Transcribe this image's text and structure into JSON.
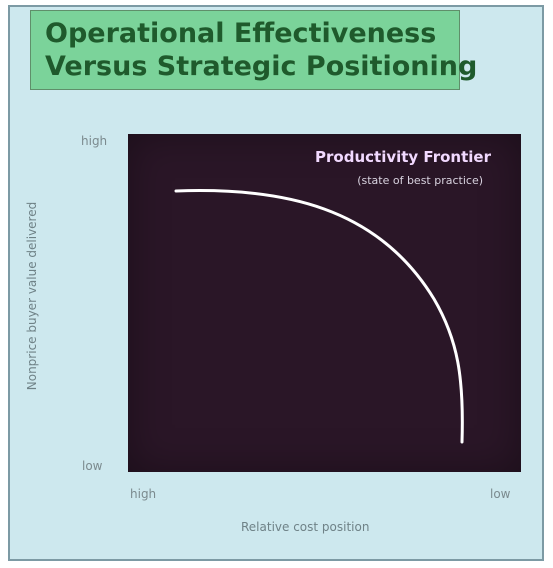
{
  "title": {
    "line1": "Operational Effectiveness",
    "line2": "Versus Strategic Positioning"
  },
  "frontier": {
    "label": "Productivity Frontier",
    "sublabel": "(state of best practice)"
  },
  "axes": {
    "y_label": "Nonprice buyer value delivered",
    "x_label": "Relative cost position",
    "y_high": "high",
    "y_low": "low",
    "x_high": "high",
    "x_low": "low"
  },
  "colors": {
    "frame_background": "#cde8ee",
    "title_background": "#7bd39a",
    "title_text": "#1f5a2c",
    "plot_background": "#2a1627",
    "curve": "#ffffff",
    "axis_text": "#6f8287"
  }
}
